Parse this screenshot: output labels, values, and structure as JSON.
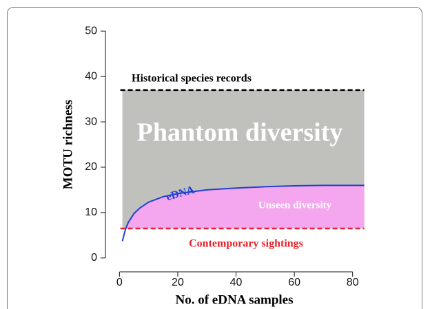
{
  "chart_data": {
    "type": "line",
    "x_label": "No. of eDNA samples",
    "y_label": "MOTU richness",
    "xlim": [
      -3.4,
      87.4
    ],
    "ylim": [
      -2,
      52
    ],
    "xticks": [
      0,
      20,
      40,
      60,
      80
    ],
    "yticks": [
      0,
      10,
      20,
      30,
      40,
      50
    ],
    "series": [
      {
        "name": "eDNA",
        "color": "#1f3fd6",
        "x": [
          1,
          2,
          3,
          5,
          7,
          10,
          15,
          20,
          30,
          40,
          50,
          60,
          70,
          84
        ],
        "values": [
          3.7,
          6.2,
          7.8,
          9.8,
          11.0,
          12.3,
          13.5,
          14.2,
          15.0,
          15.4,
          15.7,
          15.9,
          16.0,
          16.0
        ]
      }
    ],
    "reference_lines": [
      {
        "name": "Historical species records",
        "value": 37,
        "color": "#000000"
      },
      {
        "name": "Contemporary sightings",
        "value": 6.5,
        "color": "#e8202a"
      }
    ],
    "regions": [
      {
        "name": "Phantom diversity",
        "color": "#c0c0bd"
      },
      {
        "name": "Unseen diversity",
        "color": "#f4a6ee"
      }
    ]
  }
}
